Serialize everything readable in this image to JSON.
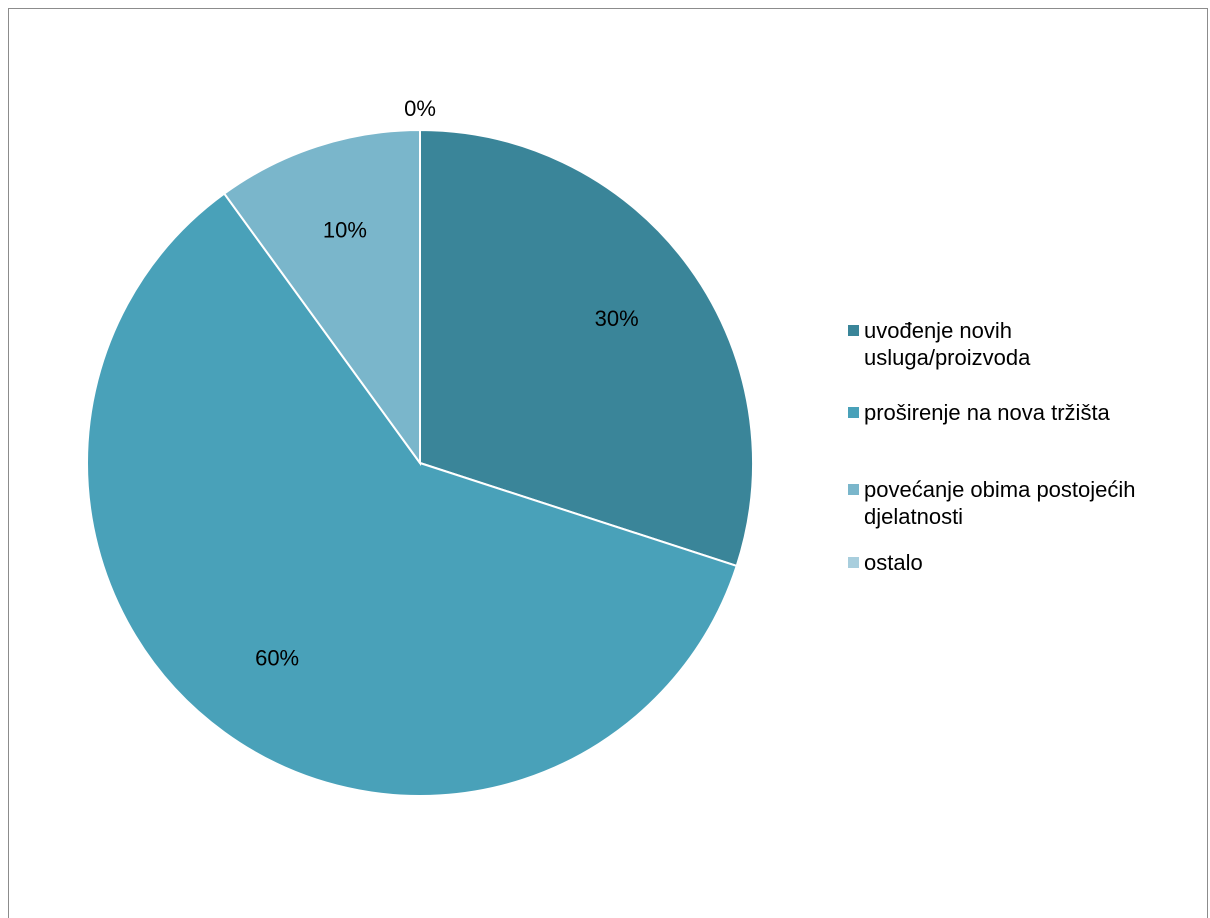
{
  "chart_data": {
    "type": "pie",
    "title": "",
    "start_angle_deg": 0,
    "direction": "clockwise",
    "slices": [
      {
        "label": "uvođenje novih usluga/proizvoda",
        "value": 30,
        "data_label": "30%",
        "color": "#3a8599"
      },
      {
        "label": "proširenje na nova tržišta",
        "value": 60,
        "data_label": "60%",
        "color": "#49a1b9"
      },
      {
        "label": "povećanje obima postojećih djelatnosti",
        "value": 10,
        "data_label": "10%",
        "color": "#7ab6cb"
      },
      {
        "label": "ostalo",
        "value": 0,
        "data_label": "0%",
        "color": "#a8cedd"
      }
    ],
    "legend": {
      "position": "right",
      "items": [
        {
          "line1": "uvođenje novih",
          "line2": "usluga/proizvoda",
          "color": "#3a8599"
        },
        {
          "line1": "proširenje na nova tržišta",
          "line2": "",
          "color": "#49a1b9"
        },
        {
          "line1": "povećanje obima postojećih",
          "line2": "djelatnosti",
          "color": "#7ab6cb"
        },
        {
          "line1": "ostalo",
          "line2": "",
          "color": "#a8cedd"
        }
      ]
    }
  }
}
